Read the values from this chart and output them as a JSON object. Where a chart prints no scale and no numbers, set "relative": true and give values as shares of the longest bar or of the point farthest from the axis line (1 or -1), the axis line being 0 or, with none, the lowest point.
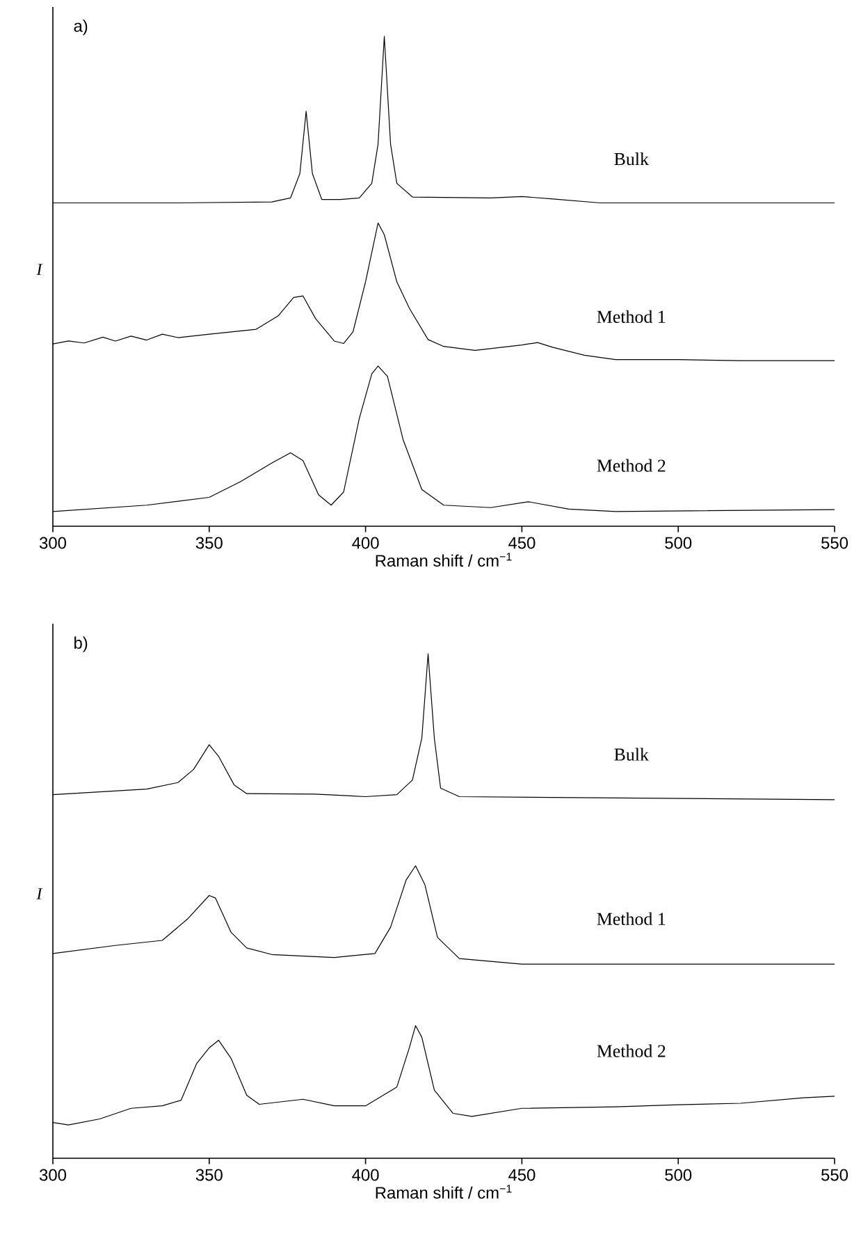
{
  "chart_data": [
    {
      "type": "line",
      "title": "a)",
      "xlabel": "Raman shift / cm$^{−1}$",
      "ylabel": "I",
      "relative": true,
      "xlim": [
        300,
        550
      ],
      "xticks": [
        300,
        350,
        400,
        450,
        500,
        550
      ],
      "marker": "none",
      "line_style": "solid",
      "series": [
        {
          "name": "Bulk",
          "color": "#000000",
          "x": [
            300,
            340,
            370,
            376,
            379,
            381,
            383,
            386,
            392,
            398,
            402,
            404,
            406,
            408,
            410,
            415,
            440,
            450,
            460,
            475,
            550
          ],
          "values": [
            0.66,
            0.66,
            0.662,
            0.67,
            0.72,
            0.847,
            0.72,
            0.667,
            0.667,
            0.67,
            0.7,
            0.78,
            1.0,
            0.78,
            0.7,
            0.672,
            0.67,
            0.673,
            0.668,
            0.66,
            0.66
          ]
        },
        {
          "name": "Method 1",
          "color": "#000000",
          "x": [
            300,
            305,
            310,
            316,
            320,
            325,
            330,
            335,
            340,
            350,
            365,
            372,
            377,
            380,
            384,
            390,
            393,
            396,
            400,
            404,
            406,
            410,
            414,
            420,
            425,
            435,
            450,
            455,
            460,
            470,
            480,
            500,
            520,
            550
          ],
          "values": [
            0.372,
            0.378,
            0.374,
            0.386,
            0.378,
            0.388,
            0.38,
            0.392,
            0.385,
            0.392,
            0.402,
            0.429,
            0.467,
            0.47,
            0.424,
            0.378,
            0.373,
            0.397,
            0.499,
            0.619,
            0.595,
            0.499,
            0.445,
            0.381,
            0.367,
            0.359,
            0.37,
            0.375,
            0.365,
            0.349,
            0.34,
            0.34,
            0.338,
            0.338
          ]
        },
        {
          "name": "Method 2",
          "color": "#000000",
          "x": [
            300,
            330,
            350,
            360,
            370,
            376,
            380,
            385,
            389,
            393,
            398,
            402,
            404,
            407,
            412,
            418,
            425,
            440,
            452,
            465,
            480,
            550
          ],
          "values": [
            0.03,
            0.043,
            0.059,
            0.091,
            0.129,
            0.15,
            0.134,
            0.064,
            0.043,
            0.07,
            0.22,
            0.311,
            0.327,
            0.306,
            0.177,
            0.075,
            0.043,
            0.038,
            0.05,
            0.035,
            0.03,
            0.034
          ]
        }
      ]
    },
    {
      "type": "line",
      "title": "b)",
      "xlabel": "Raman shift / cm$^{−1}$",
      "ylabel": "I",
      "relative": true,
      "xlim": [
        300,
        550
      ],
      "xticks": [
        300,
        350,
        400,
        450,
        500,
        550
      ],
      "marker": "none",
      "line_style": "solid",
      "series": [
        {
          "name": "Bulk",
          "color": "#000000",
          "x": [
            300,
            330,
            340,
            345,
            350,
            353,
            358,
            362,
            384,
            400,
            410,
            415,
            418,
            420,
            422,
            424,
            430,
            550
          ],
          "values": [
            0.721,
            0.732,
            0.745,
            0.771,
            0.82,
            0.797,
            0.74,
            0.723,
            0.722,
            0.717,
            0.721,
            0.75,
            0.833,
            1.0,
            0.833,
            0.734,
            0.717,
            0.711
          ]
        },
        {
          "name": "Method 1",
          "color": "#000000",
          "x": [
            300,
            320,
            335,
            343,
            350,
            352,
            357,
            362,
            370,
            390,
            403,
            408,
            413,
            416,
            419,
            423,
            430,
            450,
            550
          ],
          "values": [
            0.406,
            0.422,
            0.432,
            0.474,
            0.521,
            0.516,
            0.448,
            0.417,
            0.404,
            0.398,
            0.406,
            0.458,
            0.552,
            0.58,
            0.542,
            0.438,
            0.396,
            0.385,
            0.385
          ]
        },
        {
          "name": "Method 2",
          "color": "#000000",
          "x": [
            300,
            305,
            315,
            325,
            335,
            341,
            346,
            350,
            353,
            357,
            362,
            366,
            380,
            390,
            400,
            410,
            414,
            416,
            418,
            422,
            428,
            434,
            450,
            480,
            500,
            520,
            540,
            550
          ],
          "values": [
            0.071,
            0.066,
            0.078,
            0.099,
            0.104,
            0.115,
            0.188,
            0.219,
            0.234,
            0.198,
            0.125,
            0.107,
            0.117,
            0.104,
            0.104,
            0.141,
            0.219,
            0.263,
            0.24,
            0.135,
            0.089,
            0.083,
            0.099,
            0.102,
            0.106,
            0.109,
            0.12,
            0.123
          ]
        }
      ]
    }
  ]
}
